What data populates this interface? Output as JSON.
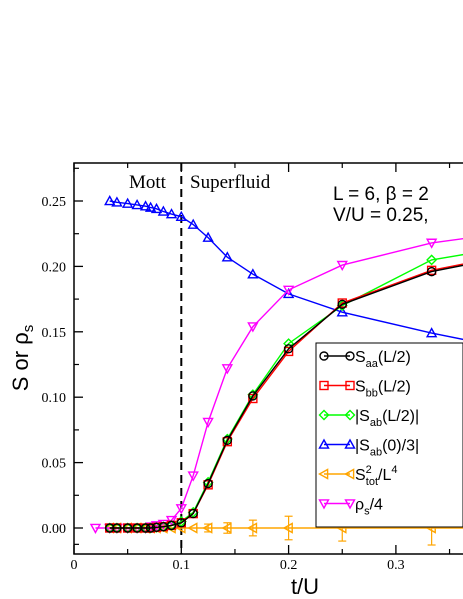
{
  "chart_data": {
    "type": "line",
    "xlabel": "t/U",
    "ylabel": "S or ρs",
    "xlim": [
      0,
      0.37
    ],
    "ylim": [
      -0.02,
      0.28
    ],
    "xticks": [
      0,
      0.1,
      0.2,
      0.3
    ],
    "xtick_labels": [
      "0",
      "0.1",
      "0.2",
      "0.3"
    ],
    "yticks": [
      0.0,
      0.05,
      0.1,
      0.15,
      0.2,
      0.25
    ],
    "ytick_labels": [
      "0.00",
      "0.05",
      "0.10",
      "0.15",
      "0.20",
      "0.25"
    ],
    "grid": false,
    "legend_position": "lower-right",
    "annotations": {
      "mott": "Mott",
      "superfluid": "Superfluid",
      "params_line1": "L = 6, β = 2",
      "params_line2": "V/U = 0.25,",
      "transition_x": 0.1
    },
    "series": [
      {
        "name": "Saa(L/2)",
        "legend_main": "S",
        "legend_sub": "aa",
        "legend_rest": "(L/2)",
        "color": "#000000",
        "marker": "circle",
        "x": [
          0.0333,
          0.04,
          0.05,
          0.0588,
          0.0667,
          0.0714,
          0.0769,
          0.0833,
          0.0909,
          0.1,
          0.1111,
          0.125,
          0.1429,
          0.1667,
          0.2,
          0.25,
          0.3333,
          0.37
        ],
        "y": [
          0.0,
          0.0,
          0.0,
          0.0,
          0.0,
          0.0,
          0.0005,
          0.001,
          0.002,
          0.004,
          0.011,
          0.034,
          0.067,
          0.101,
          0.137,
          0.171,
          0.196,
          0.202
        ],
        "yerr": null
      },
      {
        "name": "Sbb(L/2)",
        "legend_main": "S",
        "legend_sub": "bb",
        "legend_rest": "(L/2)",
        "color": "#ff0000",
        "marker": "square",
        "x": [
          0.0333,
          0.04,
          0.05,
          0.0588,
          0.0667,
          0.0714,
          0.0769,
          0.0833,
          0.0909,
          0.1,
          0.1111,
          0.125,
          0.1429,
          0.1667,
          0.2,
          0.25,
          0.3333,
          0.37
        ],
        "y": [
          0.0,
          0.0,
          0.0,
          0.0,
          0.0,
          0.0,
          0.0005,
          0.001,
          0.002,
          0.004,
          0.011,
          0.033,
          0.066,
          0.099,
          0.135,
          0.172,
          0.197,
          0.203
        ],
        "yerr": null
      },
      {
        "name": "|Sab(L/2)|",
        "legend_main": "|S",
        "legend_sub": "ab",
        "legend_rest": "(L/2)|",
        "color": "#00ff00",
        "marker": "diamond",
        "x": [
          0.0333,
          0.04,
          0.05,
          0.0588,
          0.0667,
          0.0714,
          0.0769,
          0.0833,
          0.0909,
          0.1,
          0.1111,
          0.125,
          0.1429,
          0.1667,
          0.2,
          0.25,
          0.3333,
          0.37
        ],
        "y": [
          0.0,
          0.0,
          0.0,
          0.0,
          0.0,
          0.0,
          0.0005,
          0.001,
          0.002,
          0.005,
          0.012,
          0.035,
          0.068,
          0.102,
          0.141,
          0.17,
          0.205,
          0.21
        ],
        "yerr": null
      },
      {
        "name": "|Sab(0)/3|",
        "legend_main": "|S",
        "legend_sub": "ab",
        "legend_rest": "(0)/3|",
        "color": "#0000ff",
        "marker": "triangle-up",
        "x": [
          0.0333,
          0.04,
          0.05,
          0.0588,
          0.0667,
          0.0714,
          0.0769,
          0.0833,
          0.0909,
          0.1,
          0.1111,
          0.125,
          0.1429,
          0.1667,
          0.2,
          0.25,
          0.3333,
          0.37
        ],
        "y": [
          0.25,
          0.249,
          0.248,
          0.247,
          0.246,
          0.245,
          0.244,
          0.242,
          0.24,
          0.238,
          0.232,
          0.222,
          0.207,
          0.194,
          0.179,
          0.165,
          0.149,
          0.143
        ],
        "yerr": null
      },
      {
        "name": "S2tot/L4",
        "legend_main": "S",
        "legend_sup": "2",
        "legend_sub": "tot",
        "legend_rest": "/L",
        "legend_sup2": "4",
        "color": "#ffa500",
        "marker": "triangle-left",
        "x": [
          0.0333,
          0.04,
          0.05,
          0.0588,
          0.0667,
          0.0714,
          0.0769,
          0.0833,
          0.0909,
          0.1,
          0.1111,
          0.125,
          0.1429,
          0.1667,
          0.2,
          0.25,
          0.3333,
          0.37
        ],
        "y": [
          0.0,
          0.0,
          0.0,
          0.0,
          0.0,
          0.0,
          0.0,
          0.0,
          0.0,
          0.0,
          0.0,
          0.0,
          0.0,
          0.0,
          0.0,
          0.0,
          0.0,
          0.0
        ],
        "yerr": [
          0.001,
          0.001,
          0.001,
          0.001,
          0.001,
          0.001,
          0.001,
          0.001,
          0.002,
          0.002,
          0.002,
          0.003,
          0.004,
          0.006,
          0.009,
          0.01,
          0.013,
          0.013
        ]
      },
      {
        "name": "ρs/4",
        "legend_main": "ρ",
        "legend_sub": "s",
        "legend_rest": "/4",
        "color": "#ff00ff",
        "marker": "triangle-down",
        "x": [
          0.02,
          0.0333,
          0.04,
          0.05,
          0.0588,
          0.0667,
          0.0714,
          0.0769,
          0.0833,
          0.0909,
          0.1,
          0.1111,
          0.125,
          0.1429,
          0.1667,
          0.2,
          0.25,
          0.3333,
          0.37
        ],
        "y": [
          0.0,
          0.0,
          0.0,
          0.0,
          0.0,
          0.0,
          0.001,
          0.002,
          0.003,
          0.006,
          0.015,
          0.04,
          0.081,
          0.122,
          0.154,
          0.182,
          0.201,
          0.218,
          0.222
        ],
        "yerr": null
      }
    ]
  }
}
